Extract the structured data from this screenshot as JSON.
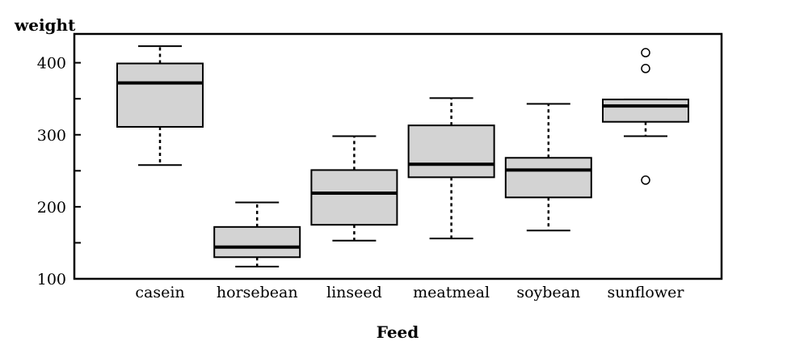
{
  "chart_data": {
    "type": "box",
    "title": "",
    "xlabel": "Feed",
    "ylabel": "weight",
    "ylim": [
      100,
      440
    ],
    "yticks": [
      100,
      200,
      300,
      400
    ],
    "grid": false,
    "categories": [
      "casein",
      "horsebean",
      "linseed",
      "meatmeal",
      "soybean",
      "sunflower"
    ],
    "boxes": [
      {
        "category": "casein",
        "whisker_low": 258,
        "q1": 311,
        "median": 372,
        "q3": 399,
        "whisker_high": 423,
        "outliers": []
      },
      {
        "category": "horsebean",
        "whisker_low": 117,
        "q1": 130,
        "median": 144,
        "q3": 172,
        "whisker_high": 206,
        "outliers": []
      },
      {
        "category": "linseed",
        "whisker_low": 153,
        "q1": 175,
        "median": 219,
        "q3": 251,
        "whisker_high": 298,
        "outliers": []
      },
      {
        "category": "meatmeal",
        "whisker_low": 156,
        "q1": 241,
        "median": 259,
        "q3": 313,
        "whisker_high": 351,
        "outliers": []
      },
      {
        "category": "soybean",
        "whisker_low": 167,
        "q1": 213,
        "median": 251,
        "q3": 268,
        "whisker_high": 343,
        "outliers": []
      },
      {
        "category": "sunflower",
        "whisker_low": 298,
        "q1": 318,
        "median": 340,
        "q3": 349,
        "whisker_high": 349,
        "outliers": [
          237,
          392,
          414
        ]
      }
    ]
  }
}
